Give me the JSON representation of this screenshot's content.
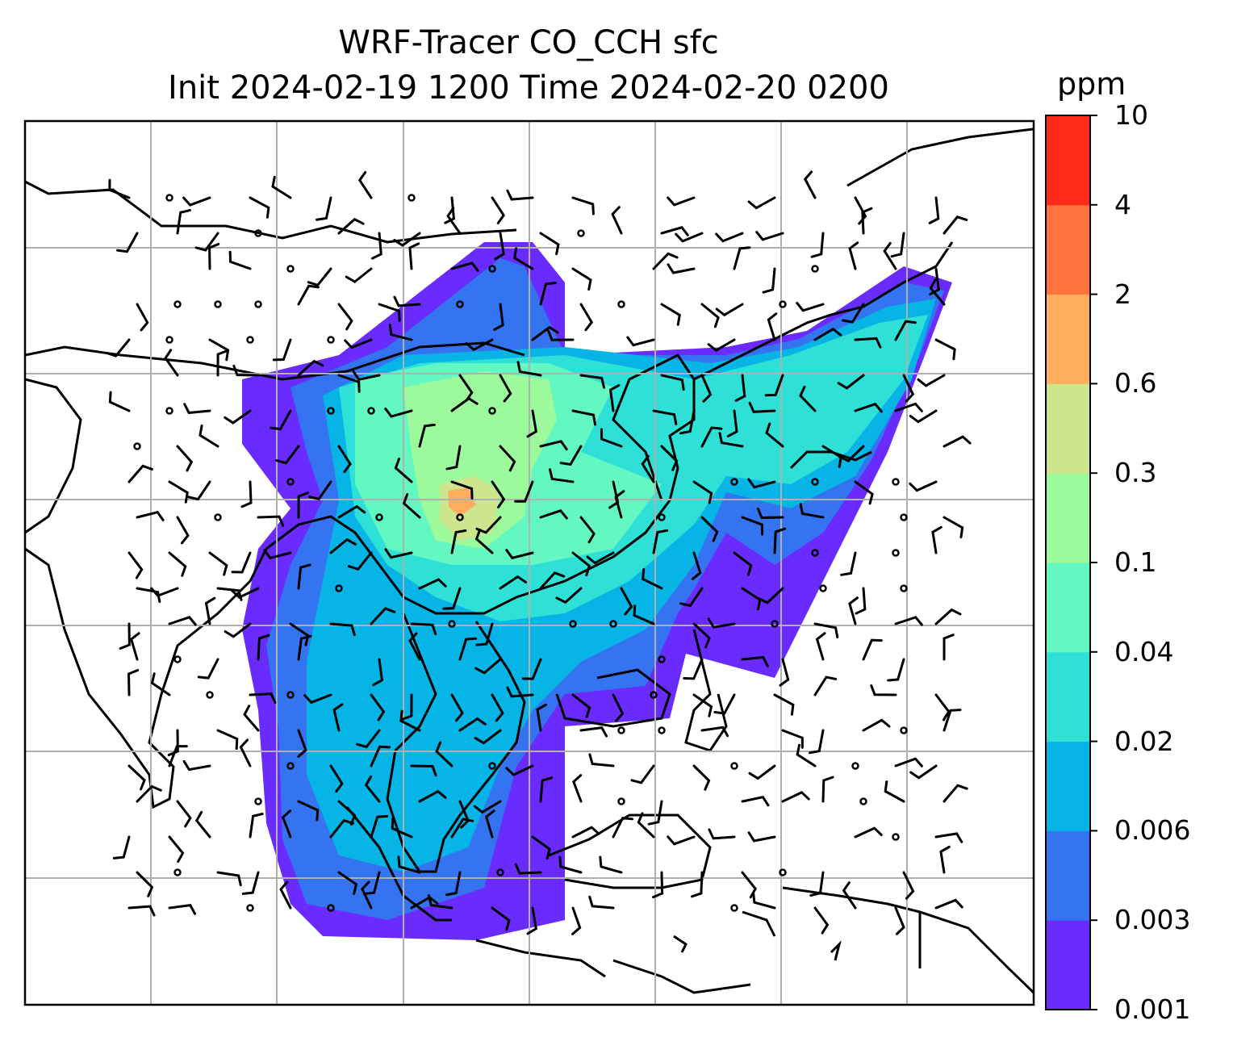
{
  "title": {
    "line1": "WRF-Tracer CO_CCH sfc",
    "line2": "Init 2024-02-19 1200 Time 2024-02-20 0200"
  },
  "colorbar": {
    "unit": "ppm",
    "levels": [
      "0.001",
      "0.003",
      "0.006",
      "0.02",
      "0.04",
      "0.1",
      "0.3",
      "0.6",
      "2",
      "4",
      "10"
    ],
    "colors": [
      "#6a2bff",
      "#3474f0",
      "#06b4e6",
      "#2fe0d6",
      "#63f8c2",
      "#9cf99c",
      "#cde58c",
      "#ffae5e",
      "#ff733d",
      "#ff2a17"
    ]
  },
  "map": {
    "projection": "lat-lon with graticule",
    "gridlines": true,
    "field": "CO_CCH surface concentration",
    "overlay": "wind barbs (black), calm circles"
  }
}
